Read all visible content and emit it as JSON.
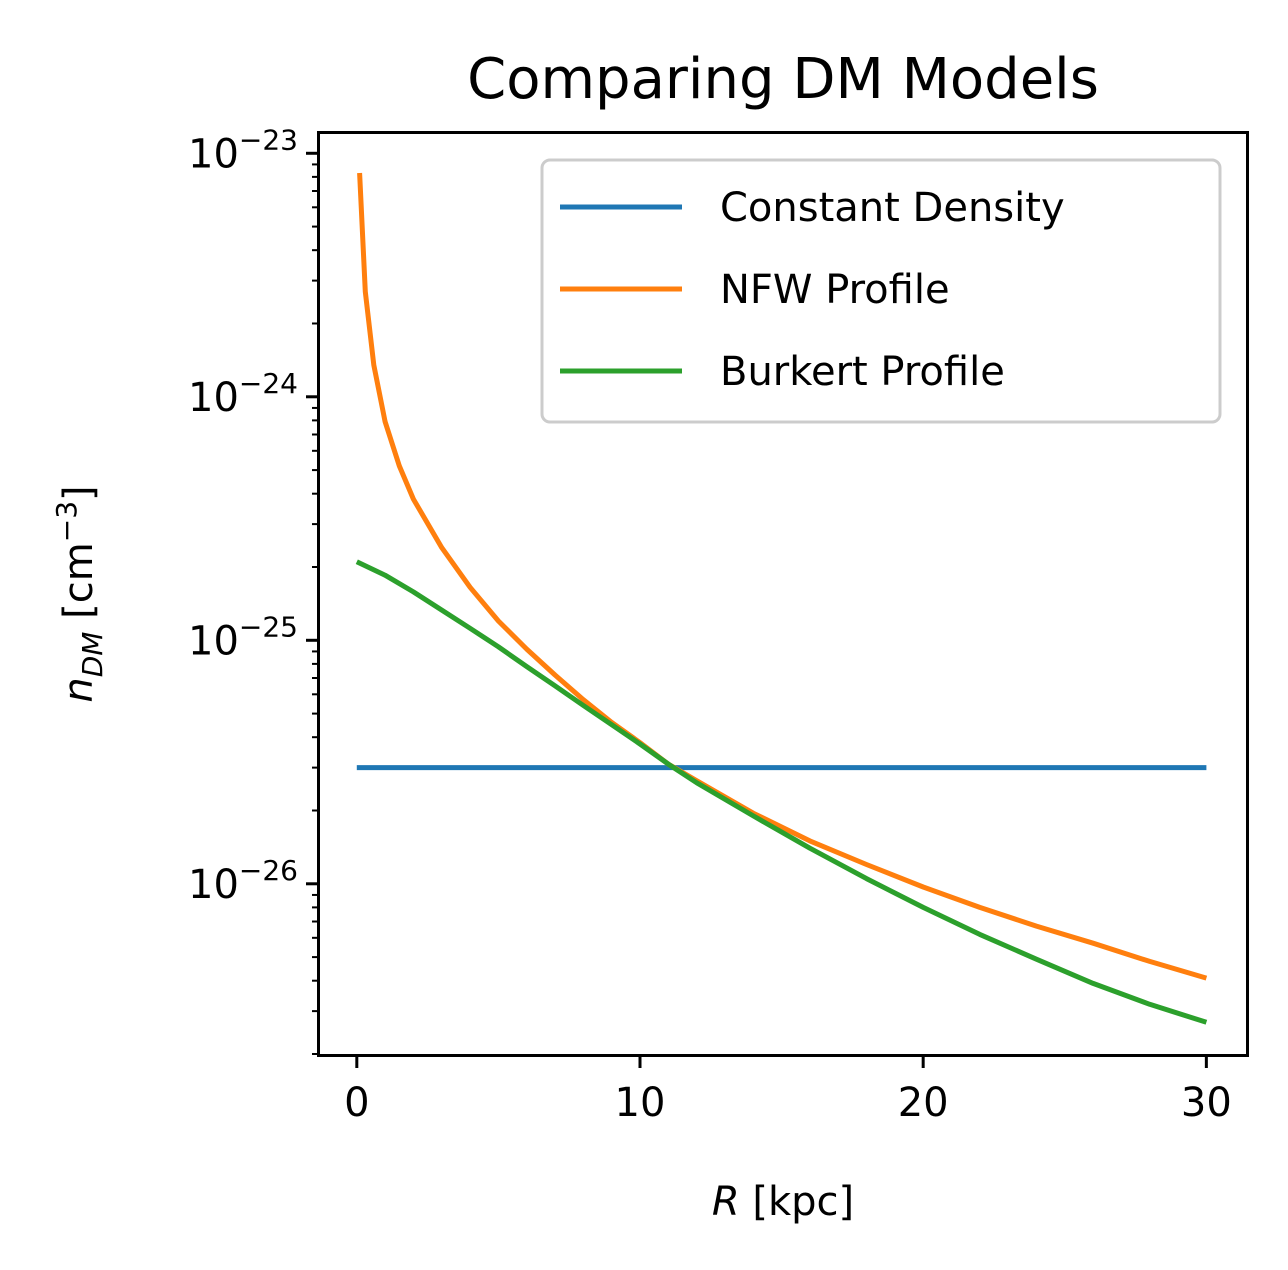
{
  "chart_data": {
    "type": "line",
    "title": "Comparing DM Models",
    "xlabel": {
      "var": "R",
      "unit": "[kpc]"
    },
    "ylabel": {
      "var": "n",
      "sub": "DM",
      "unit": "[cm",
      "exp": "−3",
      "close": "]"
    },
    "xlim": [
      -1.3,
      31.4
    ],
    "ylim": [
      2e-27,
      1.2e-23
    ],
    "yscale": "log",
    "grid": false,
    "legend_position": "upper right",
    "x_ticks": [
      {
        "value": 0,
        "label": "0"
      },
      {
        "value": 10,
        "label": "10"
      },
      {
        "value": 20,
        "label": "20"
      },
      {
        "value": 30,
        "label": "30"
      }
    ],
    "y_ticks": [
      {
        "value": 1e-26,
        "base": "10",
        "exp": "−26"
      },
      {
        "value": 1e-25,
        "base": "10",
        "exp": "−25"
      },
      {
        "value": 1e-24,
        "base": "10",
        "exp": "−24"
      },
      {
        "value": 1e-23,
        "base": "10",
        "exp": "−23"
      }
    ],
    "series": [
      {
        "name": "Constant Density",
        "color": "#1f77b4",
        "x": [
          0,
          5,
          10,
          15,
          20,
          25,
          30
        ],
        "y": [
          3e-26,
          3e-26,
          3e-26,
          3e-26,
          3e-26,
          3e-26,
          3e-26
        ]
      },
      {
        "name": "NFW Profile",
        "color": "#ff7f0e",
        "x": [
          0.1,
          0.3,
          0.6,
          1,
          1.5,
          2,
          3,
          4,
          5,
          6,
          7,
          8,
          9,
          10,
          11,
          12,
          14,
          16,
          18,
          20,
          22,
          24,
          26,
          28,
          30
        ],
        "y": [
          8.3e-24,
          2.7e-24,
          1.35e-24,
          7.9e-25,
          5.2e-25,
          3.8e-25,
          2.4e-25,
          1.65e-25,
          1.2e-25,
          9.2e-26,
          7.2e-26,
          5.7e-26,
          4.6e-26,
          3.8e-26,
          3.1e-26,
          2.65e-26,
          1.95e-26,
          1.5e-26,
          1.2e-26,
          9.7e-27,
          8e-27,
          6.7e-27,
          5.7e-27,
          4.8e-27,
          4.1e-27
        ]
      },
      {
        "name": "Burkert Profile",
        "color": "#2ca02c",
        "x": [
          0,
          1,
          2,
          3,
          4,
          5,
          6,
          7,
          8,
          9,
          10,
          11,
          12,
          14,
          16,
          18,
          20,
          22,
          24,
          26,
          28,
          30
        ],
        "y": [
          2.1e-25,
          1.85e-25,
          1.58e-25,
          1.33e-25,
          1.12e-25,
          9.4e-26,
          7.8e-26,
          6.5e-26,
          5.4e-26,
          4.5e-26,
          3.75e-26,
          3.1e-26,
          2.6e-26,
          1.9e-26,
          1.4e-26,
          1.05e-26,
          8e-27,
          6.2e-27,
          4.9e-27,
          3.9e-27,
          3.2e-27,
          2.7e-27
        ]
      }
    ]
  }
}
